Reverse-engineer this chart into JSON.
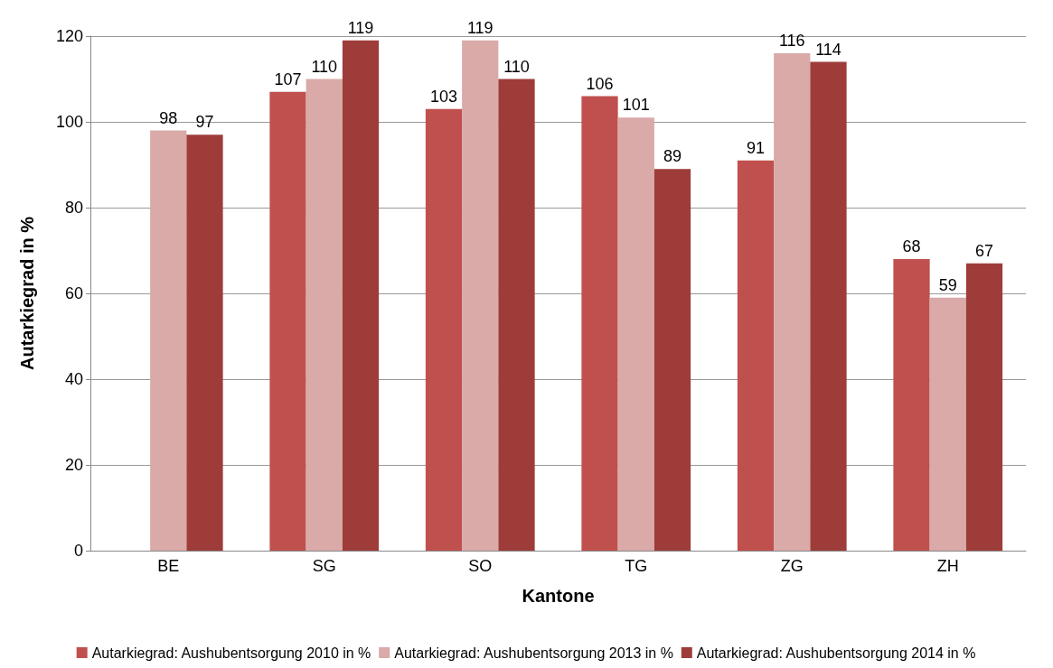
{
  "chart_data": {
    "type": "bar",
    "xlabel": "Kantone",
    "ylabel": "Autarkiegrad in %",
    "categories": [
      "BE",
      "SG",
      "SO",
      "TG",
      "ZG",
      "ZH"
    ],
    "series": [
      {
        "name": "Autarkiegrad: Aushubentsorgung 2010 in %",
        "color": "#c0504d",
        "values": [
          null,
          107,
          103,
          106,
          91,
          68
        ]
      },
      {
        "name": "Autarkiegrad: Aushubentsorgung 2013 in %",
        "color": "#d9aaa8",
        "values": [
          98,
          110,
          119,
          101,
          116,
          59
        ]
      },
      {
        "name": "Autarkiegrad: Aushubentsorgung 2014 in %",
        "color": "#9e3c3a",
        "values": [
          97,
          119,
          110,
          89,
          114,
          67
        ]
      }
    ],
    "ylim": [
      0,
      120
    ],
    "yticks": [
      0,
      20,
      40,
      60,
      80,
      100,
      120
    ],
    "grid": "y",
    "data_labels": true,
    "legend": "bottom"
  }
}
